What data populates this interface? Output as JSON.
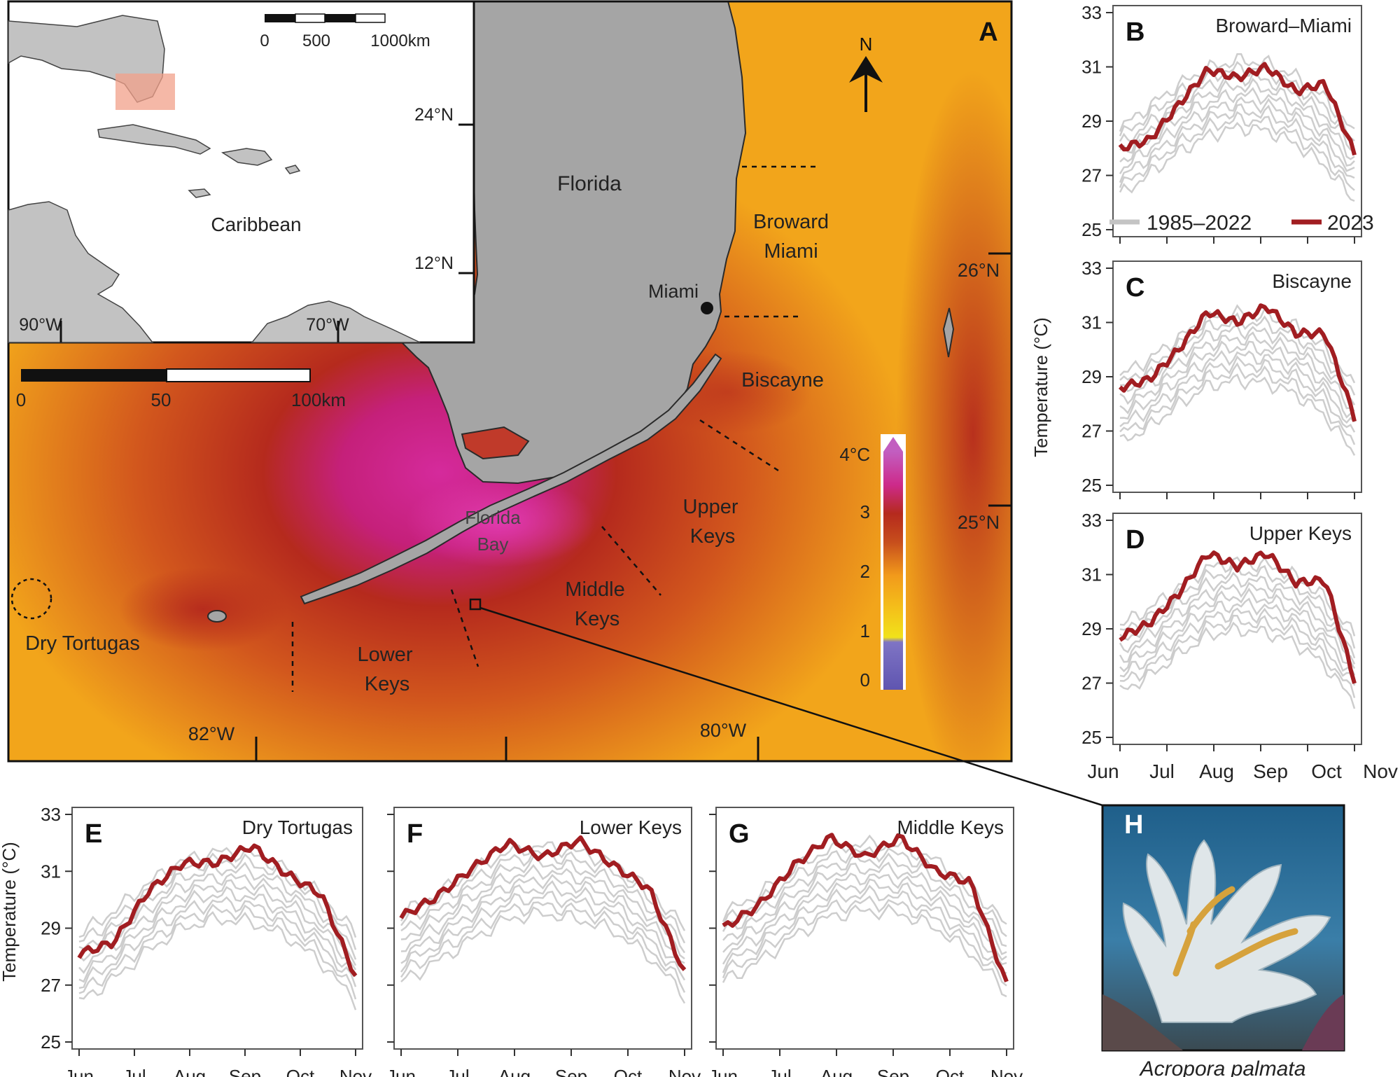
{
  "map": {
    "panel_letter": "A",
    "north_label": "N",
    "land_labels": {
      "florida": "Florida",
      "miami": "Miami"
    },
    "scale_bar": {
      "ticks": [
        "0",
        "50",
        "100km"
      ]
    },
    "lat_labels": [
      "26°N",
      "25°N"
    ],
    "lon_labels": [
      "82°W",
      "80°W"
    ],
    "region_labels": {
      "broward": [
        "Broward",
        "Miami"
      ],
      "biscayne": "Biscayne",
      "upper": [
        "Upper",
        "Keys"
      ],
      "middle": [
        "Middle",
        "Keys"
      ],
      "lower": [
        "Lower",
        "Keys"
      ],
      "tortugas": "Dry Tortugas",
      "florida_bay": [
        "Florida",
        "Bay"
      ]
    },
    "colorbar": {
      "ticks": [
        "4°C",
        "3",
        "2",
        "1",
        "0"
      ],
      "colors": [
        "#6a5ab8",
        "#f1e21a",
        "#f4a81a",
        "#c0251e",
        "#d6249a",
        "#b84fb5"
      ]
    },
    "colors": {
      "sea_warm": "#f2a51b",
      "sea_hot": "#b52a1d",
      "anomaly_max": "#d52a9c",
      "land": "#a5a5a5"
    }
  },
  "inset": {
    "scale_bar": {
      "ticks": [
        "0",
        "500",
        "1000km"
      ]
    },
    "lat_labels": [
      "24°N",
      "12°N"
    ],
    "lon_labels": [
      "90°W",
      "70°W"
    ],
    "region_label": "Caribbean"
  },
  "axes": {
    "y_ticks": [
      "25",
      "27",
      "29",
      "31",
      "33"
    ],
    "x_ticks": [
      "Jun",
      "Jul",
      "Aug",
      "Sep",
      "Oct",
      "Nov"
    ],
    "ylabel": "Temperature (°C)"
  },
  "legend": {
    "historical": "1985–2022",
    "current": "2023"
  },
  "photo": {
    "panel_letter": "H",
    "caption": "Acropora palmata"
  },
  "chart_data": [
    {
      "type": "line",
      "panel": "B",
      "title": "Broward–Miami",
      "ylabel": "Temperature (°C)",
      "ylim": [
        25,
        33
      ],
      "xlabel": "",
      "x_ticks": [
        "Jun",
        "Jul",
        "Aug",
        "Sep",
        "Oct",
        "Nov"
      ],
      "series": [
        {
          "name": "1985–2022",
          "color": "#c4c4c4",
          "values": [
            27.5,
            28.3,
            29.1,
            29.7,
            30.0,
            29.9,
            29.4,
            28.6,
            27.3
          ]
        },
        {
          "name": "2023",
          "color": "#a11d21",
          "values": [
            28.0,
            28.3,
            29.6,
            30.9,
            30.6,
            31.0,
            30.1,
            30.4,
            27.8
          ]
        }
      ]
    },
    {
      "type": "line",
      "panel": "C",
      "title": "Biscayne",
      "ylabel": "Temperature (°C)",
      "ylim": [
        25,
        33
      ],
      "xlabel": "",
      "x_ticks": [
        "Jun",
        "Jul",
        "Aug",
        "Sep",
        "Oct",
        "Nov"
      ],
      "series": [
        {
          "name": "1985–2022",
          "color": "#c4c4c4",
          "values": [
            27.8,
            28.4,
            29.2,
            29.9,
            30.1,
            30.0,
            29.6,
            28.8,
            27.4
          ]
        },
        {
          "name": "2023",
          "color": "#a11d21",
          "values": [
            28.6,
            28.9,
            30.0,
            31.4,
            31.0,
            31.6,
            30.6,
            30.6,
            27.5
          ]
        }
      ]
    },
    {
      "type": "line",
      "panel": "D",
      "title": "Upper Keys",
      "ylabel": "Temperature (°C)",
      "ylim": [
        25,
        33
      ],
      "xlabel": "",
      "x_ticks": [
        "Jun",
        "Jul",
        "Aug",
        "Sep",
        "Oct",
        "Nov"
      ],
      "series": [
        {
          "name": "1985–2022",
          "color": "#c4c4c4",
          "values": [
            27.9,
            28.5,
            29.3,
            30.0,
            30.2,
            30.1,
            29.7,
            28.9,
            27.5
          ]
        },
        {
          "name": "2023",
          "color": "#a11d21",
          "values": [
            28.7,
            29.2,
            30.3,
            31.8,
            31.3,
            31.8,
            30.7,
            30.8,
            27.1
          ]
        }
      ]
    },
    {
      "type": "line",
      "panel": "E",
      "title": "Dry Tortugas",
      "ylabel": "Temperature (°C)",
      "ylim": [
        25,
        33
      ],
      "xlabel": "",
      "x_ticks": [
        "Jun",
        "Jul",
        "Aug",
        "Sep",
        "Oct",
        "Nov"
      ],
      "series": [
        {
          "name": "1985–2022",
          "color": "#c4c4c4",
          "values": [
            27.6,
            28.4,
            29.4,
            30.2,
            30.5,
            30.4,
            29.9,
            29.0,
            27.6
          ]
        },
        {
          "name": "2023",
          "color": "#a11d21",
          "values": [
            28.1,
            28.5,
            30.3,
            31.3,
            31.3,
            31.9,
            30.9,
            30.2,
            27.3
          ]
        }
      ]
    },
    {
      "type": "line",
      "panel": "F",
      "title": "Lower Keys",
      "ylabel": "Temperature (°C)",
      "ylim": [
        25,
        33
      ],
      "xlabel": "",
      "x_ticks": [
        "Jun",
        "Jul",
        "Aug",
        "Sep",
        "Oct",
        "Nov"
      ],
      "series": [
        {
          "name": "1985–2022",
          "color": "#c4c4c4",
          "values": [
            28.3,
            29.0,
            29.8,
            30.5,
            30.7,
            30.5,
            30.1,
            29.2,
            27.8
          ]
        },
        {
          "name": "2023",
          "color": "#a11d21",
          "values": [
            29.4,
            30.1,
            31.1,
            32.0,
            31.5,
            32.1,
            31.2,
            30.4,
            27.4
          ]
        }
      ]
    },
    {
      "type": "line",
      "panel": "G",
      "title": "Middle Keys",
      "ylabel": "Temperature (°C)",
      "ylim": [
        25,
        33
      ],
      "xlabel": "",
      "x_ticks": [
        "Jun",
        "Jul",
        "Aug",
        "Sep",
        "Oct",
        "Nov"
      ],
      "series": [
        {
          "name": "1985–2022",
          "color": "#c4c4c4",
          "values": [
            28.3,
            29.0,
            29.9,
            30.6,
            30.8,
            30.7,
            30.2,
            29.3,
            27.9
          ]
        },
        {
          "name": "2023",
          "color": "#a11d21",
          "values": [
            29.0,
            29.8,
            31.2,
            32.2,
            31.5,
            32.2,
            31.0,
            30.6,
            27.0
          ]
        }
      ]
    }
  ]
}
